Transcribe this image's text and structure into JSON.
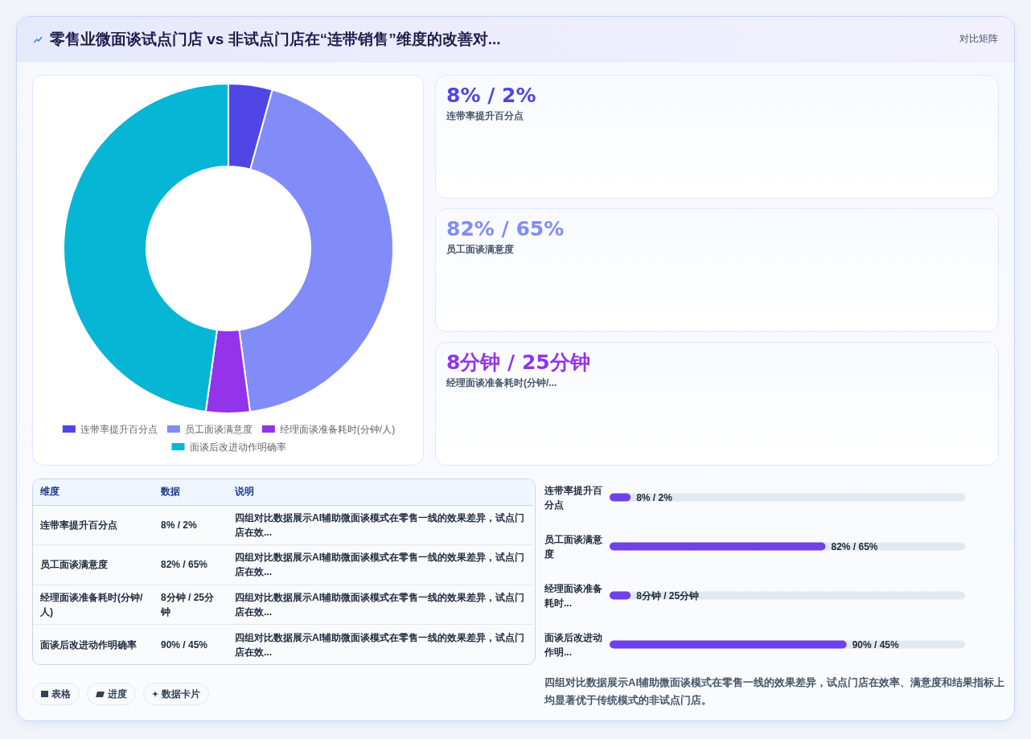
{
  "chart_data": [
    {
      "type": "other",
      "title": "零售业微面谈试点门店 vs 非试点门店在“连带销售”维度的改善对...",
      "annotations": [
        "对比矩阵"
      ]
    },
    {
      "type": "donut",
      "categories": [
        "连带率提升百分点",
        "员工面谈满意度",
        "经理面谈准备耗时(分钟/人)",
        "面谈后改进动作明确率"
      ],
      "values": [
        4.3,
        43.6,
        4.3,
        47.8
      ],
      "colors": [
        "#4f46e5",
        "#818cf8",
        "#9333ea",
        "#06b6d4"
      ],
      "legend": "bottom"
    },
    {
      "type": "other",
      "annotations": [
        "8% / 2%",
        "连带率提升百分点",
        "82% / 65%",
        "员工面谈满意度",
        "8分钟 / 25分钟",
        "经理面谈准备耗时(分钟/..."
      ]
    },
    {
      "type": "other",
      "categories": [
        "维度",
        "数据",
        "说明"
      ],
      "annotations": [
        "连带率提升百分点",
        "8% / 2%",
        "四组对比数据展示AI辅助微面谈模式在零售一线的效果差异，试点门店在效...",
        "员工面谈满意度",
        "82% / 65%",
        "四组对比数据展示AI辅助微面谈模式在零售一线的效果差异，试点门店在效...",
        "经理面谈准备耗时(分钟/人)",
        "8分钟 / 25分钟",
        "四组对比数据展示AI辅助微面谈模式在零售一线的效果差异，试点门店在效...",
        "面谈后改进动作明确率",
        "90% / 45%",
        "四组对比数据展示AI辅助微面谈模式在零售一线的效果差异，试点门店在效..."
      ]
    },
    {
      "type": "bar",
      "orientation": "horizontal",
      "categories": [
        "连带率提升百分点",
        "员工面谈满意度",
        "经理面谈准备耗时...",
        "面谈后改进动作明..."
      ],
      "values": [
        8,
        82,
        8,
        90
      ],
      "value_labels": [
        "8% / 2%",
        "82% / 65%",
        "8分钟 / 25分钟",
        "90% / 45%"
      ],
      "color": "#7041e8",
      "tick_labels": "y",
      "annotations": [
        "四组对比数据展示AI辅助微面谈模式在零售一线的效果差异，试点门店在效率、满意度和结果指标上均显著优于传统模式的非试点门店。"
      ]
    },
    {
      "type": "other",
      "annotations": [
        "表格",
        "进度",
        "数据卡片"
      ]
    }
  ]
}
